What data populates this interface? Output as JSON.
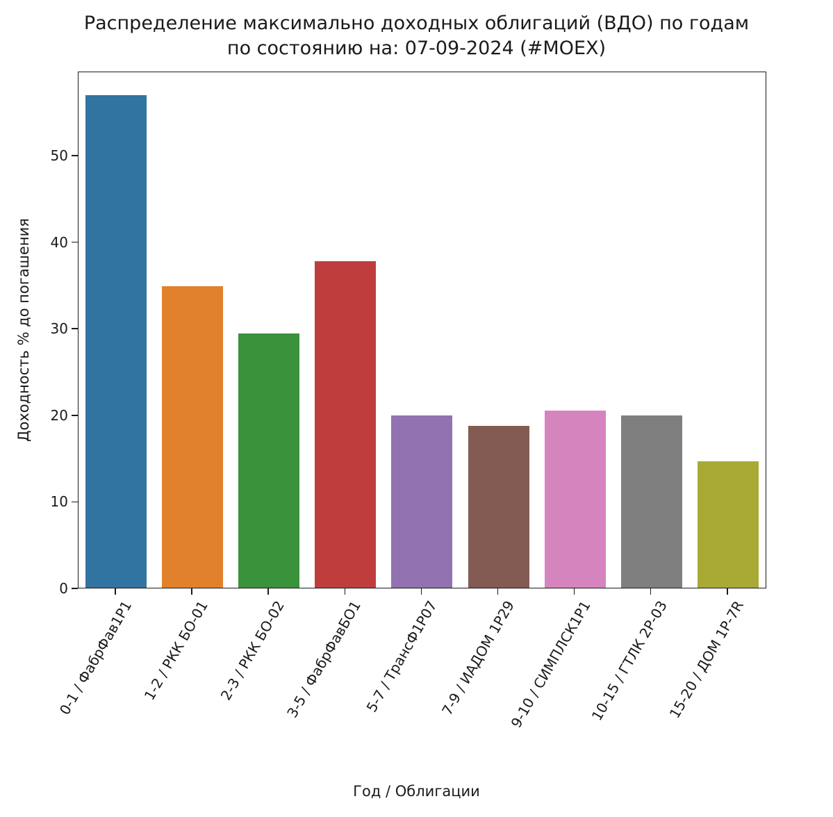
{
  "chart_data": {
    "type": "bar",
    "title": "Распределение максимально доходных облигаций (ВДО) по годам",
    "subtitle": "по состоянию на: 07-09-2024 (#MOEX)",
    "xlabel": "Год / Облигации",
    "ylabel": "Доходность % до погашения",
    "categories": [
      "0-1 / ФабрФав1Р1",
      "1-2 / РКК БО-01",
      "2-3 / РКК БО-02",
      "3-5 / ФабрФавБО1",
      "5-7 / ТрансФ1Р07",
      "7-9 / ИАДОМ 1Р29",
      "9-10 / СИМПЛСК1Р1",
      "10-15 / ГТЛК 2Р-03",
      "15-20 / ДОМ 1Р-7R"
    ],
    "values": [
      56.9,
      34.8,
      29.4,
      37.7,
      19.9,
      18.7,
      20.5,
      19.9,
      14.6
    ],
    "colors": [
      "#3274a1",
      "#e1812c",
      "#3a923a",
      "#c03d3e",
      "#9372b2",
      "#845b53",
      "#d684bd",
      "#7f7f7f",
      "#a9aa35"
    ],
    "yticks": [
      0,
      10,
      20,
      30,
      40,
      50
    ],
    "ylim": [
      0,
      59.7
    ],
    "grid": false,
    "legend": null
  }
}
